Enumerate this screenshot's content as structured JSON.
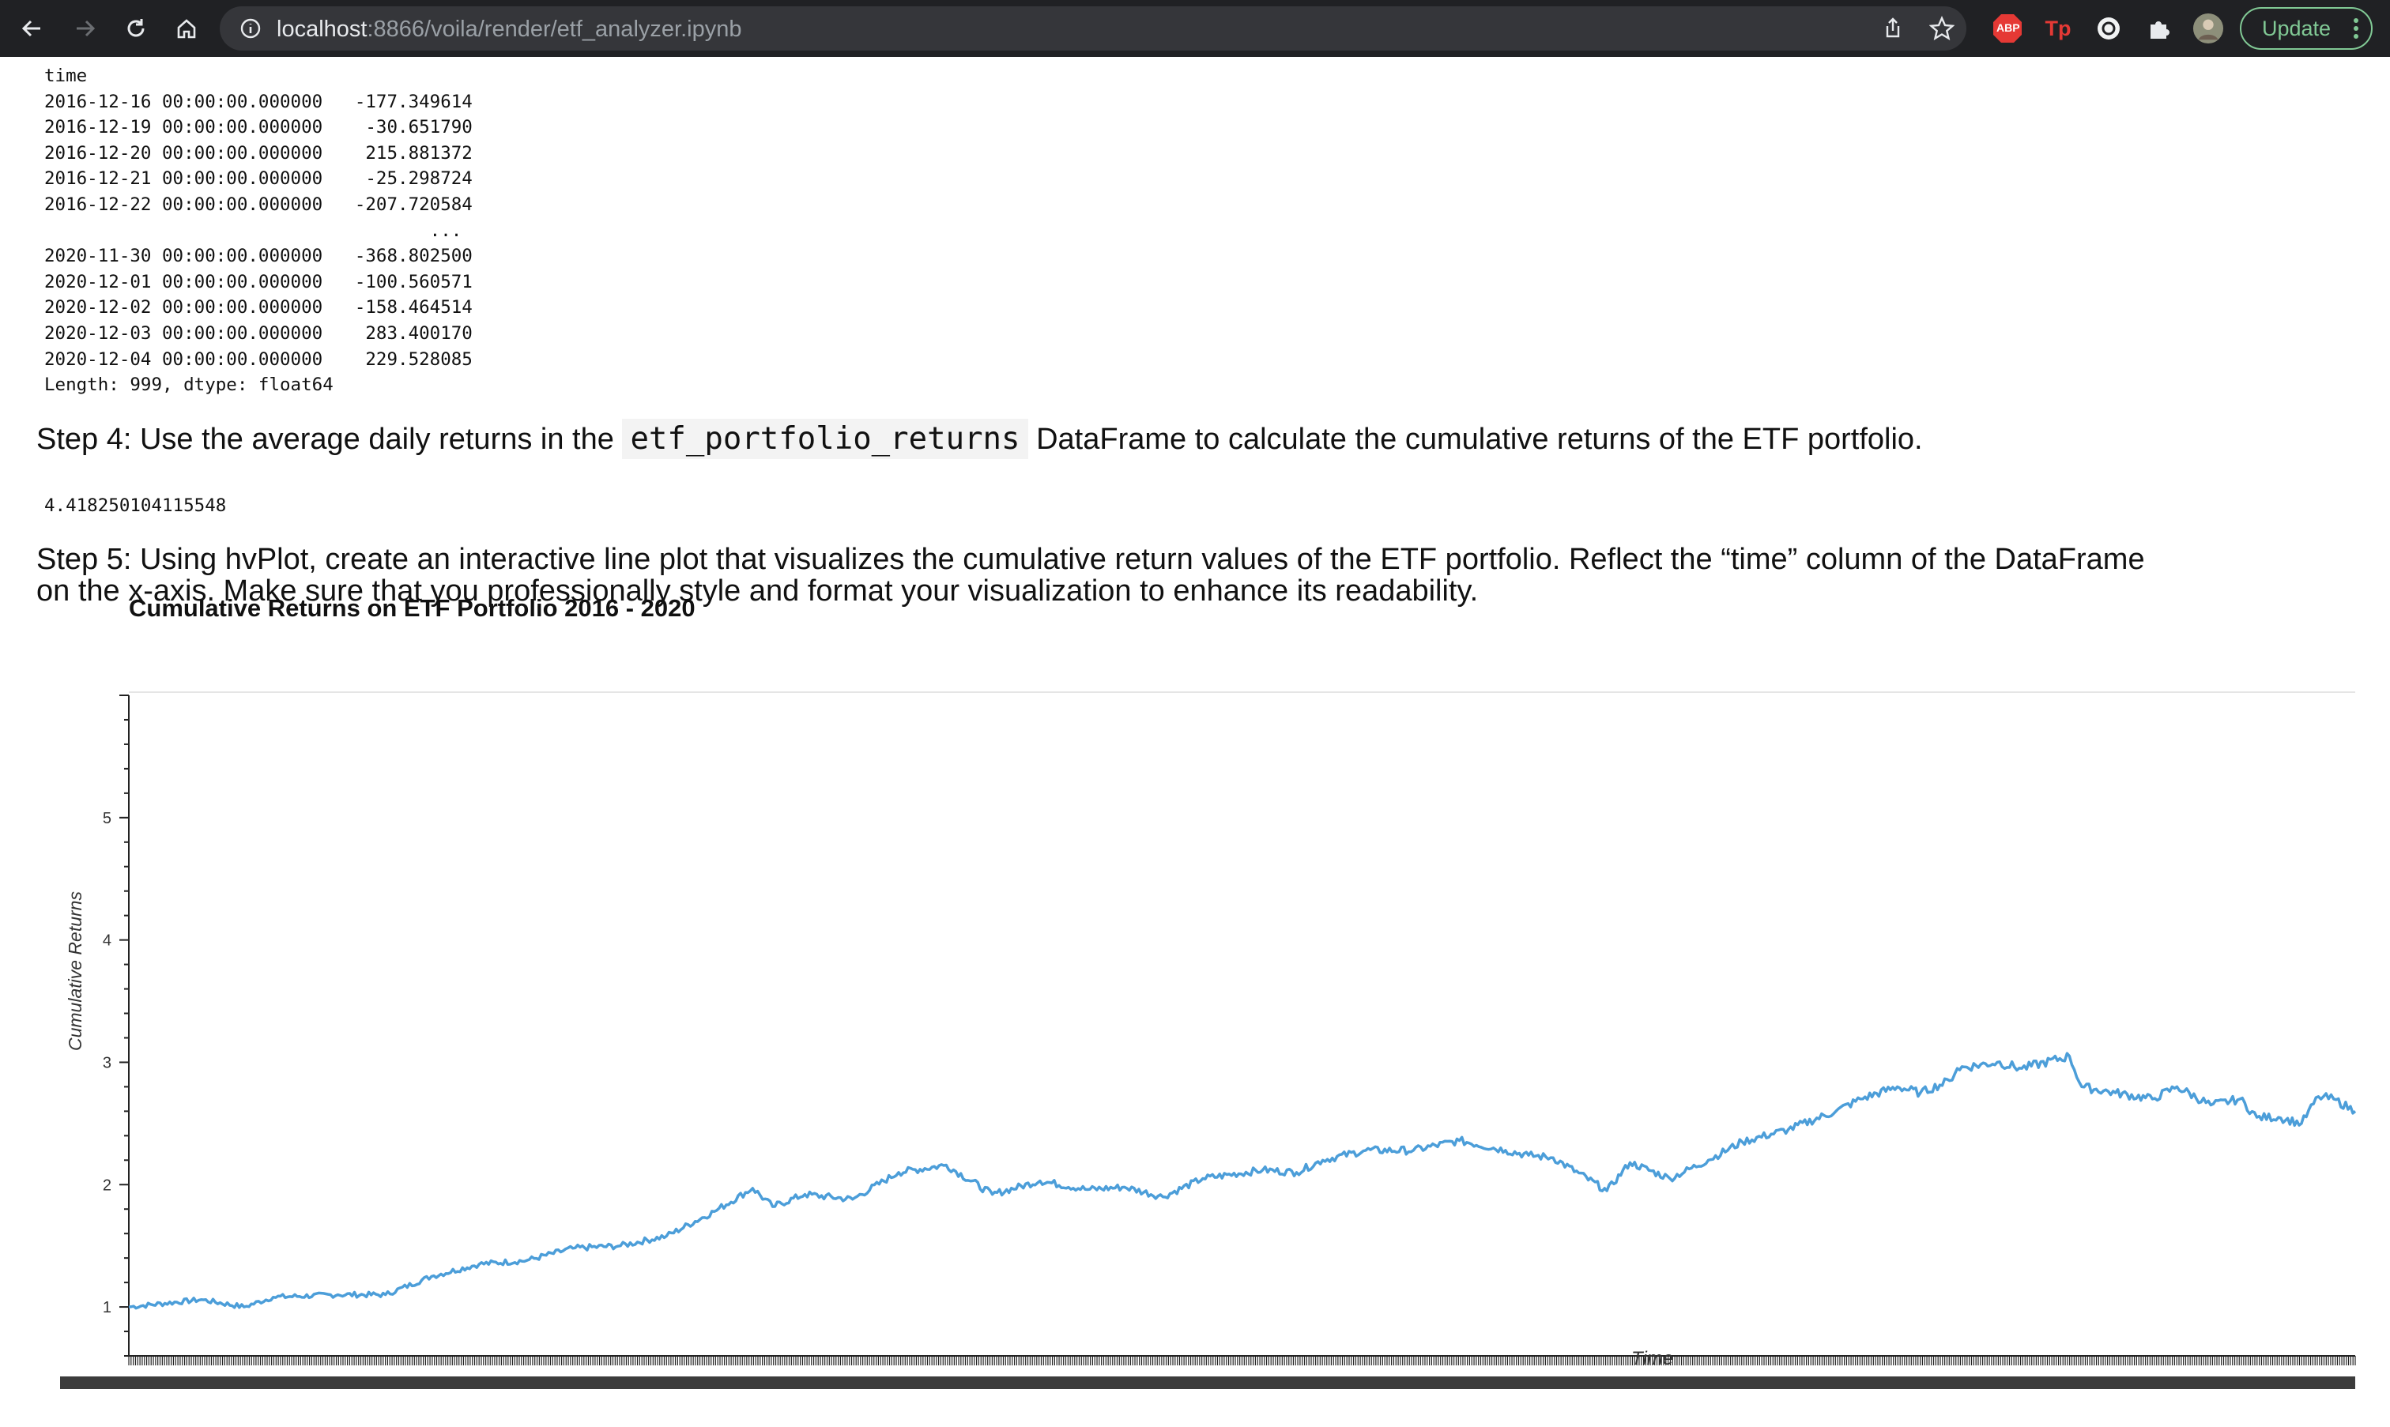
{
  "browser": {
    "url_host": "localhost",
    "url_rest": ":8866/voila/render/etf_analyzer.ipynb",
    "update_label": "Update",
    "extensions": [
      "ABP",
      "Tp"
    ]
  },
  "output1": {
    "index_name": "time",
    "rows_head": [
      {
        "time": "2016-12-16 00:00:00.000000",
        "value": "-177.349614"
      },
      {
        "time": "2016-12-19 00:00:00.000000",
        "value": "-30.651790"
      },
      {
        "time": "2016-12-20 00:00:00.000000",
        "value": "215.881372"
      },
      {
        "time": "2016-12-21 00:00:00.000000",
        "value": "-25.298724"
      },
      {
        "time": "2016-12-22 00:00:00.000000",
        "value": "-207.720584"
      }
    ],
    "ellipsis": "...",
    "rows_tail": [
      {
        "time": "2020-11-30 00:00:00.000000",
        "value": "-368.802500"
      },
      {
        "time": "2020-12-01 00:00:00.000000",
        "value": "-100.560571"
      },
      {
        "time": "2020-12-02 00:00:00.000000",
        "value": "-158.464514"
      },
      {
        "time": "2020-12-03 00:00:00.000000",
        "value": "283.400170"
      },
      {
        "time": "2020-12-04 00:00:00.000000",
        "value": "229.528085"
      }
    ],
    "footer": "Length: 999, dtype: float64"
  },
  "step4": {
    "prefix": "Step 4: Use the average daily returns in the ",
    "code": "etf_portfolio_returns",
    "suffix": " DataFrame to calculate the cumulative returns of the ETF portfolio."
  },
  "output2": "4.418250104115548",
  "step5": {
    "line1": "Step 5: Using hvPlot, create an interactive line plot that visualizes the cumulative return values of the ETF portfolio. Reflect the “time” column of the DataFrame",
    "line2": "on the x-axis. Make sure that you professionally style and format your visualization to enhance its readability."
  },
  "chart_data": {
    "type": "line",
    "title": "Cumulative Returns on ETF Portfolio 2016 - 2020",
    "xlabel": "Time",
    "ylabel": "Cumulative Returns",
    "ylim": [
      0.6,
      6.0
    ],
    "yticks": [
      1,
      2,
      3,
      4,
      5
    ],
    "xlim": [
      "2016-12-16",
      "2020-12-04"
    ],
    "grid": false,
    "legend": "none",
    "color": "#4c9ed9",
    "series": [
      {
        "x": [
          "2016-12-16",
          "2017-02-01",
          "2017-03-01",
          "2017-03-20",
          "2017-05-01",
          "2017-06-01",
          "2017-07-01",
          "2017-08-01",
          "2017-09-01",
          "2017-10-01",
          "2017-11-01",
          "2017-12-01",
          "2018-01-01",
          "2018-01-26",
          "2018-02-08",
          "2018-03-01",
          "2018-04-01",
          "2018-05-01",
          "2018-06-01",
          "2018-07-01",
          "2018-08-01",
          "2018-09-01",
          "2018-09-25",
          "2018-10-20",
          "2018-11-15",
          "2018-12-24",
          "2019-01-15",
          "2019-02-01",
          "2019-03-01",
          "2019-04-01",
          "2019-05-01",
          "2019-05-31",
          "2019-06-15",
          "2019-07-01",
          "2019-08-05",
          "2019-08-20",
          "2019-09-15",
          "2019-10-10",
          "2019-11-01",
          "2019-12-01",
          "2020-01-01",
          "2020-01-17",
          "2020-02-10",
          "2020-02-25",
          "2020-03-15",
          "2020-03-20",
          "2020-04-15",
          "2020-05-01",
          "2020-06-01",
          "2020-06-09",
          "2020-07-01",
          "2020-07-25",
          "2020-08-10",
          "2020-09-01",
          "2020-09-20",
          "2020-10-01",
          "2020-10-15",
          "2020-10-30",
          "2020-11-10",
          "2020-11-20",
          "2020-12-04"
        ],
        "y": [
          1.0,
          1.06,
          1.0,
          1.08,
          1.1,
          1.1,
          1.25,
          1.35,
          1.38,
          1.48,
          1.5,
          1.58,
          1.78,
          1.97,
          1.82,
          1.92,
          1.88,
          2.1,
          2.16,
          1.92,
          2.03,
          1.96,
          1.98,
          1.9,
          2.05,
          2.12,
          2.1,
          2.2,
          2.28,
          2.28,
          2.36,
          2.28,
          2.24,
          2.22,
          1.95,
          2.18,
          2.05,
          2.2,
          2.35,
          2.45,
          2.6,
          2.7,
          2.8,
          2.75,
          2.85,
          2.95,
          3.0,
          2.95,
          3.05,
          2.8,
          2.75,
          2.7,
          2.8,
          2.65,
          2.7,
          2.55,
          2.55,
          2.5,
          2.72,
          2.7,
          2.6
        ]
      }
    ]
  }
}
